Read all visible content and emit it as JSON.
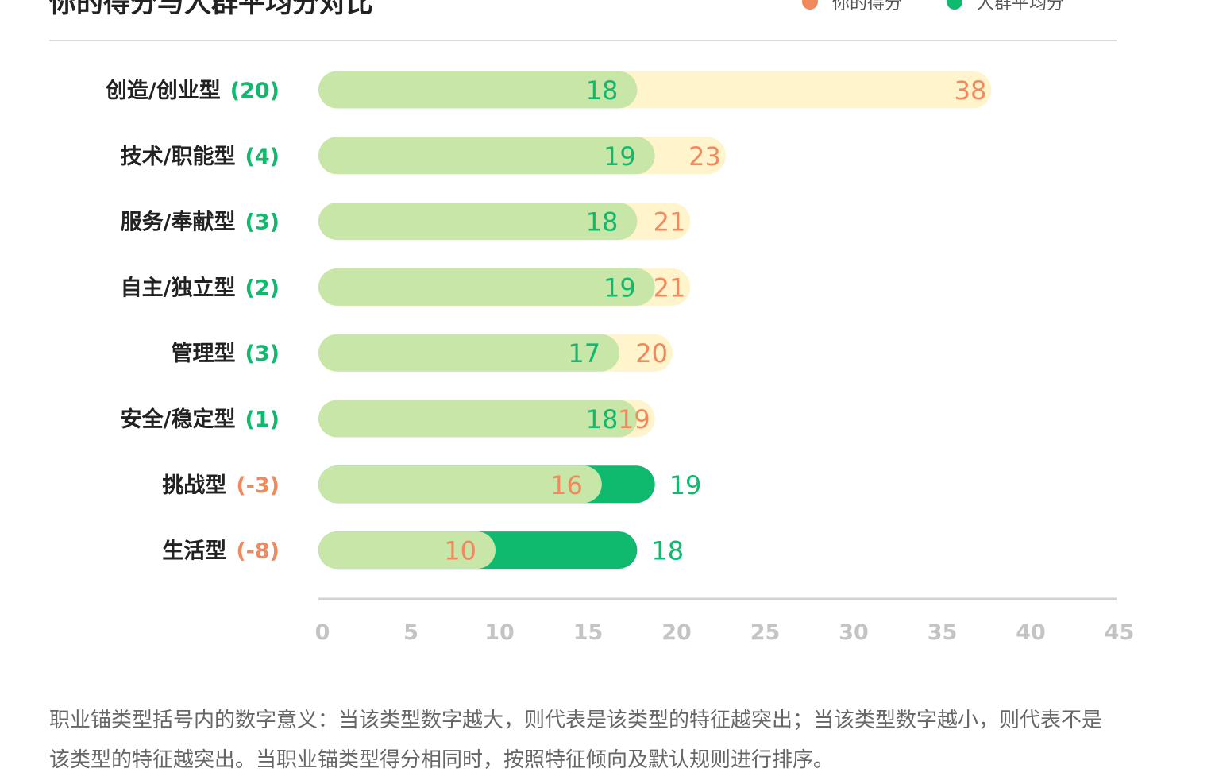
{
  "title": "你的得分与人群平均分对比",
  "legend": [
    {
      "label": "你的得分",
      "color": "#f2895e"
    },
    {
      "label": "人群平均分",
      "color": "#0fba6e"
    }
  ],
  "colors": {
    "avg_bar": "#c7e6a8",
    "user_bar_higher": "#fff4cc",
    "user_bar_lower": "#0fba6e",
    "user_value_text": "#f2895e",
    "avg_value_text": "#0fba6e",
    "positive_diff": "#0fba6e",
    "negative_diff": "#f2895e"
  },
  "chart_data": {
    "type": "bar",
    "orientation": "horizontal",
    "xlim": [
      0,
      45
    ],
    "xticks": [
      0,
      5,
      10,
      15,
      20,
      25,
      30,
      35,
      40,
      45
    ],
    "categories": [
      {
        "name": "创造/创业型",
        "diff": "(20)",
        "user": 38,
        "average": 18
      },
      {
        "name": "技术/职能型",
        "diff": "(4)",
        "user": 23,
        "average": 19
      },
      {
        "name": "服务/奉献型",
        "diff": "(3)",
        "user": 21,
        "average": 18
      },
      {
        "name": "自主/独立型",
        "diff": "(2)",
        "user": 21,
        "average": 19
      },
      {
        "name": "管理型",
        "diff": "(3)",
        "user": 20,
        "average": 17
      },
      {
        "name": "安全/稳定型",
        "diff": "(1)",
        "user": 19,
        "average": 18
      },
      {
        "name": "挑战型",
        "diff": "(-3)",
        "user": 16,
        "average": 19
      },
      {
        "name": "生活型",
        "diff": "(-8)",
        "user": 10,
        "average": 18
      }
    ],
    "series": [
      {
        "name": "你的得分",
        "values": [
          38,
          23,
          21,
          21,
          20,
          19,
          16,
          10
        ]
      },
      {
        "name": "人群平均分",
        "values": [
          18,
          19,
          18,
          19,
          17,
          18,
          19,
          18
        ]
      }
    ],
    "grid": false,
    "legend_position": "top-right"
  },
  "note": "职业锚类型括号内的数字意义：当该类型数字越大，则代表是该类型的特征越突出；当该类型数字越小，则代表不是该类型的特征越突出。当职业锚类型得分相同时，按照特征倾向及默认规则进行排序。"
}
